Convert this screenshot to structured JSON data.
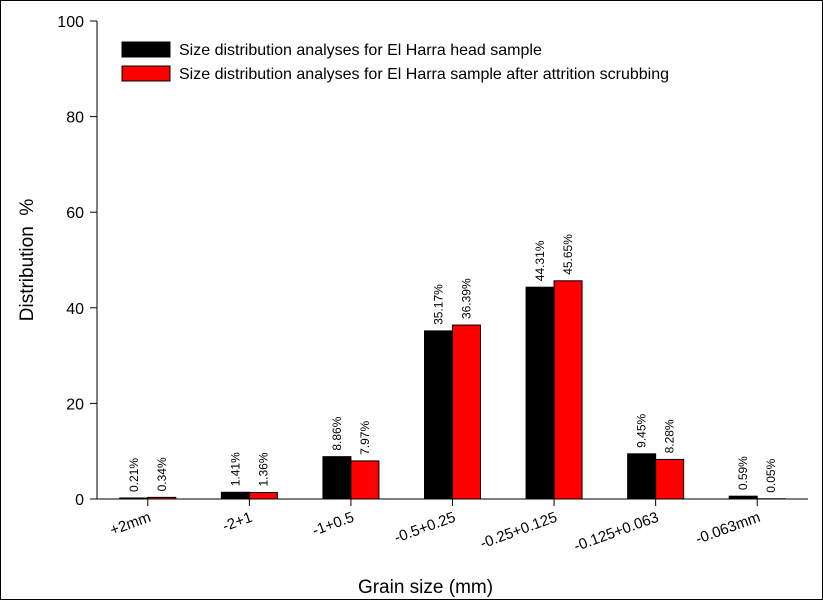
{
  "chart_data": {
    "type": "bar",
    "categories": [
      "+2mm",
      "-2+1",
      "-1+0.5",
      "-0.5+0.25",
      "-0.25+0.125",
      "-0.125+0.063",
      "-0.063mm"
    ],
    "series": [
      {
        "name": "Size distribution analyses for El Harra head sample",
        "color": "#000000",
        "values": [
          0.21,
          1.41,
          8.86,
          35.17,
          44.31,
          9.45,
          0.59
        ],
        "labels": [
          "0.21%",
          "1.41%",
          "8.86%",
          "35.17%",
          "44.31%",
          "9.45%",
          "0.59%"
        ]
      },
      {
        "name": "Size distribution analyses for El Harra sample after attrition scrubbing",
        "color": "#ff0000",
        "values": [
          0.34,
          1.36,
          7.97,
          36.39,
          45.65,
          8.28,
          0.05
        ],
        "labels": [
          "0.34%",
          "1.36%",
          "7.97%",
          "36.39%",
          "45.65%",
          "8.28%",
          "0.05%"
        ]
      }
    ],
    "xlabel": "Grain size (mm)",
    "ylabel": "Distribution  %",
    "ylim": [
      0,
      100
    ],
    "yticks": [
      0,
      20,
      40,
      60,
      80,
      100
    ],
    "legend_position": "top-left",
    "grid": false
  }
}
